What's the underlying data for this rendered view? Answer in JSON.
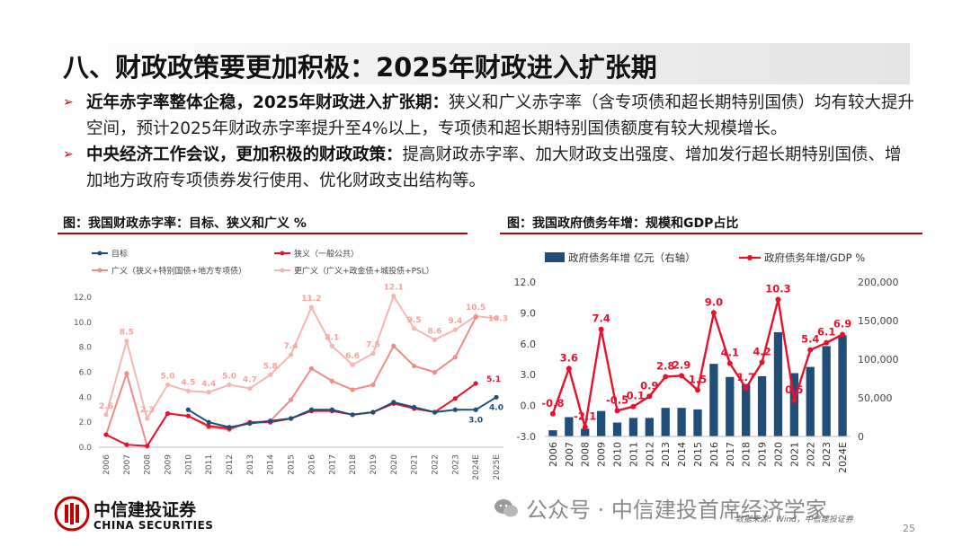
{
  "slide": {
    "title": "八、财政政策要更加积极：2025年财政进入扩张期",
    "bullet1_bold": "近年赤字率整体企稳，2025年财政进入扩张期：",
    "bullet1_text": "狭义和广义赤字率（含专项债和超长期特别国债）均有较大提升空间，预计2025年财政赤字率提升至4%以上，专项债和超长期特别国债额度有较大规模增长。",
    "bullet2_bold": "中央经济工作会议，更加积极的财政政策：",
    "bullet2_text": "提高财政赤字率、加大财政支出强度、增加发行超长期特别国债、增加地方政府专项债券发行使用、优化财政支出结构等。",
    "page_number": "25"
  },
  "footer": {
    "logo_cn": "中信建投证券",
    "logo_en": "CHINA SECURITIES",
    "watermark": "公众号 · 中信建投首席经济学家",
    "source": "数据来源：Wind，中信建投证券"
  },
  "colors": {
    "accent_red": "#c00000",
    "navy": "#1f4e79",
    "red": "#e8112d",
    "salmon": "#f08c86",
    "pink": "#f4b6b2",
    "bar_blue": "#1f4e79"
  },
  "chart_data": [
    {
      "type": "line",
      "title": "图：我国财政赤字率：目标、狭义和广义 %",
      "categories": [
        "2006",
        "2007",
        "2008",
        "2009",
        "2010",
        "2011",
        "2012",
        "2013",
        "2014",
        "2015",
        "2016",
        "2017",
        "2018",
        "2019",
        "2020",
        "2021",
        "2022",
        "2023",
        "2024E",
        "2025E"
      ],
      "ylim": [
        0,
        12
      ],
      "yticks": [
        "0.0",
        "2.0",
        "4.0",
        "6.0",
        "8.0",
        "10.0",
        "12.0"
      ],
      "grid": false,
      "legend": "top",
      "series": [
        {
          "name": "目标",
          "color": "#1f4e79",
          "values": [
            null,
            null,
            null,
            null,
            3.0,
            2.0,
            1.6,
            1.9,
            2.1,
            2.3,
            3.0,
            3.0,
            2.6,
            2.8,
            3.6,
            3.2,
            2.8,
            3.0,
            3.0,
            4.0
          ]
        },
        {
          "name": "狭义（一般公共）",
          "color": "#e8112d",
          "values": [
            1.0,
            0.2,
            0.1,
            2.7,
            2.5,
            1.7,
            1.5,
            2.0,
            2.0,
            2.3,
            2.9,
            2.9,
            2.6,
            2.8,
            3.5,
            3.1,
            2.8,
            3.9,
            5.1,
            null
          ]
        },
        {
          "name": "广义（狭义+特别国债+地方专项债）",
          "color": "#f08c86",
          "values": [
            1.0,
            5.9,
            0.1,
            2.7,
            2.5,
            1.6,
            1.4,
            2.0,
            2.1,
            3.8,
            6.3,
            5.3,
            4.6,
            5.0,
            8.1,
            6.5,
            6.0,
            7.2,
            10.4,
            null
          ]
        },
        {
          "name": "更广义（广义+政金债+城投债+PSL）",
          "color": "#f4b6b2",
          "values": [
            2.6,
            8.5,
            2.3,
            5.0,
            4.5,
            4.4,
            5.0,
            4.7,
            5.8,
            7.4,
            11.2,
            8.1,
            6.6,
            7.5,
            12.1,
            9.5,
            8.6,
            9.4,
            10.5,
            10.3
          ]
        }
      ],
      "data_labels": {
        "更广义": [
          "2.6",
          "8.5",
          "2.3",
          "5.0",
          "4.5",
          "4.4",
          "5.0",
          "4.7",
          "5.8",
          "7.4",
          "11.2",
          "8.1",
          "6.6",
          "7.5",
          "12.1",
          "9.5",
          "8.6",
          "9.4",
          "10.5",
          "10.3"
        ],
        "狭义_2024E": "5.1",
        "目标_2024E": "3.0",
        "目标_2025E": "4.0"
      }
    },
    {
      "type": "bar+line",
      "title": "图：我国政府债务年增：规模和GDP占比",
      "categories": [
        "2006",
        "2007",
        "2008",
        "2009",
        "2010",
        "2011",
        "2012",
        "2013",
        "2014",
        "2015",
        "2016",
        "2017",
        "2018",
        "2019",
        "2020",
        "2021",
        "2022",
        "2023",
        "2024E"
      ],
      "legend": "top",
      "left_axis": {
        "ylim": [
          -3,
          12
        ],
        "ticks": [
          "-3.0",
          "0.0",
          "3.0",
          "6.0",
          "9.0",
          "12.0"
        ]
      },
      "right_axis": {
        "ylim": [
          0,
          200000
        ],
        "ticks": [
          "0",
          "50,000",
          "100,000",
          "150,000",
          "200,000"
        ]
      },
      "series": [
        {
          "name": "政府债务年增 亿元（右轴）",
          "type": "bar",
          "axis": "right",
          "color": "#1f4e79",
          "values": [
            8000,
            25000,
            10000,
            33000,
            18000,
            24000,
            24000,
            37000,
            37000,
            35000,
            94000,
            77000,
            68000,
            78000,
            135000,
            82000,
            90000,
            117000,
            131000
          ]
        },
        {
          "name": "政府债务年增/GDP %",
          "type": "line",
          "axis": "left",
          "color": "#e8112d",
          "values": [
            -0.8,
            3.6,
            -2.1,
            7.4,
            -0.5,
            -0.1,
            0.9,
            2.8,
            2.9,
            1.5,
            9.0,
            4.1,
            1.7,
            4.2,
            10.3,
            0.5,
            5.4,
            6.1,
            6.9
          ]
        }
      ],
      "data_labels": [
        "-0.8",
        "3.6",
        "-2.1",
        "7.4",
        "-0.5",
        "-0.1",
        "0.9",
        "2.8",
        "2.9",
        "1.5",
        "9.0",
        "4.1",
        "1.7",
        "4.2",
        "10.3",
        "0.5",
        "5.4",
        "6.1",
        "6.9"
      ]
    }
  ]
}
